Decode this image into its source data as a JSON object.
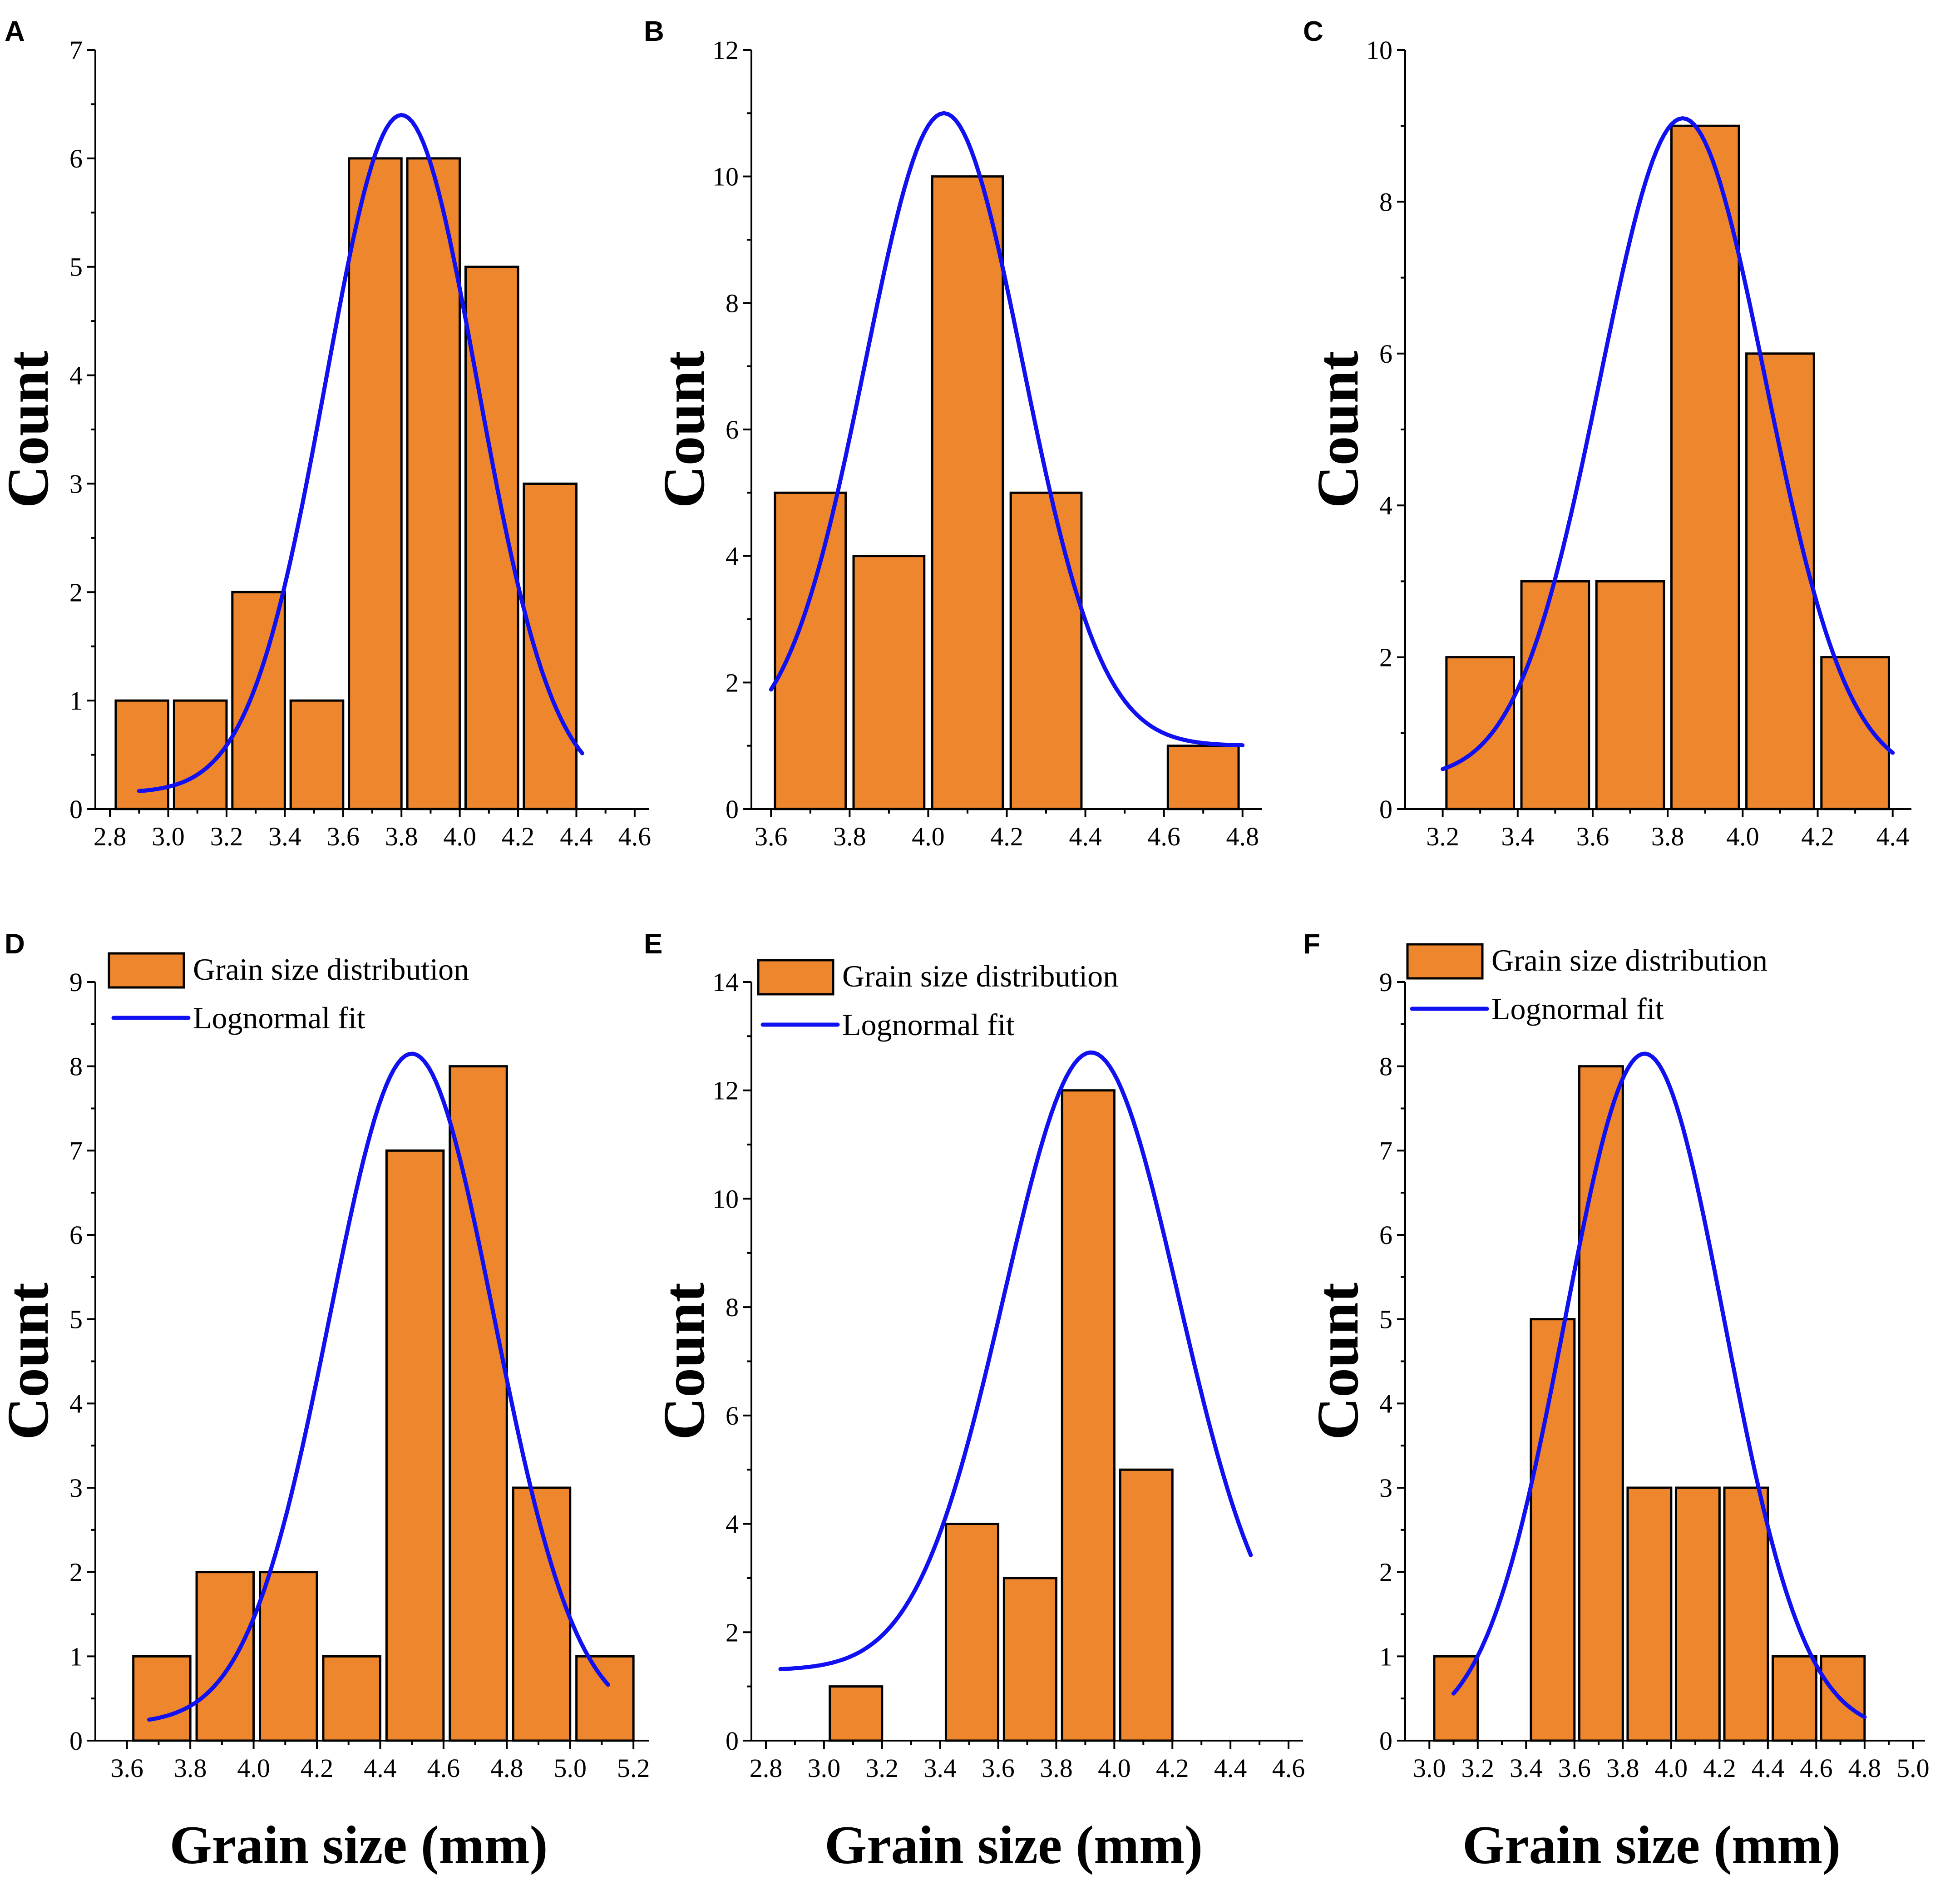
{
  "colors": {
    "bar": "#EE862E",
    "fit": "#1010F0",
    "axis": "#000000"
  },
  "legend": {
    "bars_label": "Grain size distribution",
    "fit_label": "Lognormal fit"
  },
  "chart_data": [
    {
      "panel": "A",
      "type": "bar",
      "ylabel": "Count",
      "xlabel": "",
      "xlim": [
        2.75,
        4.65
      ],
      "ylim": [
        0,
        7
      ],
      "xticks": [
        "2.8",
        "3.0",
        "3.2",
        "3.4",
        "3.6",
        "3.8",
        "4.0",
        "4.2",
        "4.4",
        "4.6"
      ],
      "yticks": [
        "0",
        "1",
        "2",
        "3",
        "4",
        "5",
        "6",
        "7"
      ],
      "bars": [
        {
          "x0": 2.82,
          "x1": 3.0,
          "value": 1
        },
        {
          "x0": 3.02,
          "x1": 3.2,
          "value": 1
        },
        {
          "x0": 3.22,
          "x1": 3.4,
          "value": 2
        },
        {
          "x0": 3.42,
          "x1": 3.6,
          "value": 1
        },
        {
          "x0": 3.62,
          "x1": 3.8,
          "value": 6
        },
        {
          "x0": 3.82,
          "x1": 4.0,
          "value": 6
        },
        {
          "x0": 4.02,
          "x1": 4.2,
          "value": 5
        },
        {
          "x0": 4.22,
          "x1": 4.4,
          "value": 3
        }
      ],
      "fit": {
        "mu": 3.8,
        "sigma": 0.26,
        "peak": 6.4,
        "baseline": 0.15,
        "x_start": 2.9,
        "x_end": 4.42
      },
      "legend": false
    },
    {
      "panel": "B",
      "type": "bar",
      "ylabel": "Count",
      "xlabel": "",
      "xlim": [
        3.55,
        4.85
      ],
      "ylim": [
        0,
        12
      ],
      "xticks": [
        "3.6",
        "3.8",
        "4.0",
        "4.2",
        "4.4",
        "4.6",
        "4.8"
      ],
      "yticks": [
        "0",
        "2",
        "4",
        "6",
        "8",
        "10",
        "12"
      ],
      "bars": [
        {
          "x0": 3.61,
          "x1": 3.79,
          "value": 5
        },
        {
          "x0": 3.81,
          "x1": 3.99,
          "value": 4
        },
        {
          "x0": 4.01,
          "x1": 4.19,
          "value": 10
        },
        {
          "x0": 4.21,
          "x1": 4.39,
          "value": 5
        },
        {
          "x0": 4.61,
          "x1": 4.79,
          "value": 1
        }
      ],
      "fit": {
        "mu": 4.04,
        "sigma": 0.2,
        "peak": 11.0,
        "baseline": 1.0,
        "x_start": 3.6,
        "x_end": 4.8
      },
      "legend": false
    },
    {
      "panel": "C",
      "type": "bar",
      "ylabel": "Count",
      "xlabel": "",
      "xlim": [
        3.1,
        4.45
      ],
      "ylim": [
        0,
        10
      ],
      "xticks": [
        "3.2",
        "3.4",
        "3.6",
        "3.8",
        "4.0",
        "4.2",
        "4.4"
      ],
      "yticks": [
        "0",
        "2",
        "4",
        "6",
        "8",
        "10"
      ],
      "bars": [
        {
          "x0": 3.21,
          "x1": 3.39,
          "value": 2
        },
        {
          "x0": 3.41,
          "x1": 3.59,
          "value": 3
        },
        {
          "x0": 3.61,
          "x1": 3.79,
          "value": 3
        },
        {
          "x0": 3.81,
          "x1": 3.99,
          "value": 9
        },
        {
          "x0": 4.01,
          "x1": 4.19,
          "value": 6
        },
        {
          "x0": 4.21,
          "x1": 4.39,
          "value": 2
        }
      ],
      "fit": {
        "mu": 3.84,
        "sigma": 0.22,
        "peak": 9.1,
        "baseline": 0.4,
        "x_start": 3.2,
        "x_end": 4.4
      },
      "legend": false
    },
    {
      "panel": "D",
      "type": "bar",
      "ylabel": "Count",
      "xlabel": "Grain size (mm)",
      "xlim": [
        3.5,
        5.25
      ],
      "ylim": [
        0,
        9
      ],
      "xticks": [
        "3.6",
        "3.8",
        "4.0",
        "4.2",
        "4.4",
        "4.6",
        "4.8",
        "5.0",
        "5.2"
      ],
      "yticks": [
        "0",
        "1",
        "2",
        "3",
        "4",
        "5",
        "6",
        "7",
        "8",
        "9"
      ],
      "bars": [
        {
          "x0": 3.62,
          "x1": 3.8,
          "value": 1
        },
        {
          "x0": 3.82,
          "x1": 4.0,
          "value": 2
        },
        {
          "x0": 4.02,
          "x1": 4.2,
          "value": 2
        },
        {
          "x0": 4.22,
          "x1": 4.4,
          "value": 1
        },
        {
          "x0": 4.42,
          "x1": 4.6,
          "value": 7
        },
        {
          "x0": 4.62,
          "x1": 4.8,
          "value": 8
        },
        {
          "x0": 4.82,
          "x1": 5.0,
          "value": 3
        },
        {
          "x0": 5.02,
          "x1": 5.2,
          "value": 1
        }
      ],
      "fit": {
        "mu": 4.5,
        "sigma": 0.26,
        "peak": 8.15,
        "baseline": 0.2,
        "x_start": 3.67,
        "x_end": 5.12
      },
      "legend": true
    },
    {
      "panel": "E",
      "type": "bar",
      "ylabel": "Count",
      "xlabel": "Grain size (mm)",
      "xlim": [
        2.75,
        4.65
      ],
      "ylim": [
        0,
        14
      ],
      "xticks": [
        "2.8",
        "3.0",
        "3.2",
        "3.4",
        "3.6",
        "3.8",
        "4.0",
        "4.2",
        "4.4",
        "4.6"
      ],
      "yticks": [
        "0",
        "2",
        "4",
        "6",
        "8",
        "10",
        "12",
        "14"
      ],
      "bars": [
        {
          "x0": 3.02,
          "x1": 3.2,
          "value": 1
        },
        {
          "x0": 3.42,
          "x1": 3.6,
          "value": 4
        },
        {
          "x0": 3.62,
          "x1": 3.8,
          "value": 3
        },
        {
          "x0": 3.82,
          "x1": 4.0,
          "value": 12
        },
        {
          "x0": 4.02,
          "x1": 4.2,
          "value": 5
        }
      ],
      "fit": {
        "mu": 3.92,
        "sigma": 0.3,
        "peak": 12.7,
        "baseline": 1.3,
        "x_start": 2.85,
        "x_end": 4.47
      },
      "legend": true
    },
    {
      "panel": "F",
      "type": "bar",
      "ylabel": "Count",
      "xlabel": "Grain size (mm)",
      "xlim": [
        2.9,
        5.05
      ],
      "ylim": [
        0,
        9
      ],
      "xticks": [
        "3.0",
        "3.2",
        "3.4",
        "3.6",
        "3.8",
        "4.0",
        "4.2",
        "4.4",
        "4.6",
        "4.8",
        "5.0"
      ],
      "yticks": [
        "0",
        "1",
        "2",
        "3",
        "4",
        "5",
        "6",
        "7",
        "8",
        "9"
      ],
      "bars": [
        {
          "x0": 3.02,
          "x1": 3.2,
          "value": 1
        },
        {
          "x0": 3.42,
          "x1": 3.6,
          "value": 5
        },
        {
          "x0": 3.62,
          "x1": 3.8,
          "value": 8
        },
        {
          "x0": 3.82,
          "x1": 4.0,
          "value": 3
        },
        {
          "x0": 4.02,
          "x1": 4.2,
          "value": 3
        },
        {
          "x0": 4.22,
          "x1": 4.4,
          "value": 3
        },
        {
          "x0": 4.42,
          "x1": 4.6,
          "value": 1
        },
        {
          "x0": 4.62,
          "x1": 4.8,
          "value": 1
        }
      ],
      "fit": {
        "mu": 3.89,
        "sigma": 0.33,
        "peak": 8.15,
        "baseline": 0.1,
        "x_start": 3.1,
        "x_end": 4.8
      },
      "legend": true
    }
  ]
}
